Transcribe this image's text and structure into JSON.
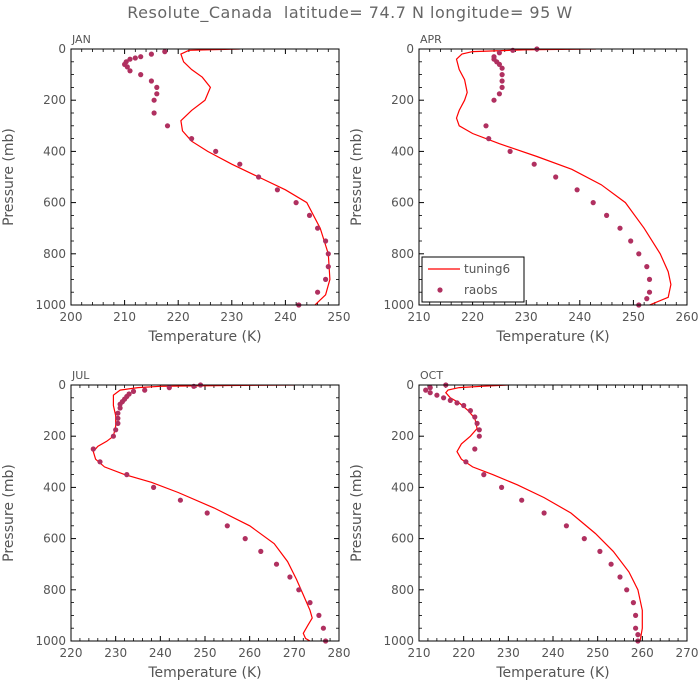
{
  "title": "Resolute_Canada  latitude= 74.7 N longitude= 95 W",
  "colors": {
    "model": "#ff0000",
    "obs": "#b03060",
    "axis": "#000000",
    "text": "#555555"
  },
  "legend": {
    "model_label": "tuning6",
    "obs_label": "raobs",
    "panel": "APR"
  },
  "chart_data": [
    {
      "type": "line",
      "panel": "JAN",
      "xlabel": "Temperature (K)",
      "ylabel": "Pressure (mb)",
      "xlim": [
        200,
        250
      ],
      "ylim": [
        1000,
        0
      ],
      "xticks": [
        200,
        210,
        220,
        230,
        240,
        250
      ],
      "yticks": [
        0,
        200,
        400,
        600,
        800,
        1000
      ],
      "series": [
        {
          "name": "tuning6",
          "kind": "line",
          "x": [
            231.5,
            222,
            220.5,
            221,
            222.5,
            224.5,
            226,
            225,
            222.5,
            220.5,
            220.8,
            222.5,
            225.5,
            230,
            235,
            240,
            244,
            246.5,
            248,
            248.3,
            247.5,
            245.5
          ],
          "y": [
            0,
            5,
            20,
            50,
            80,
            110,
            150,
            200,
            240,
            280,
            320,
            360,
            400,
            450,
            500,
            550,
            600,
            700,
            800,
            900,
            960,
            1000
          ]
        },
        {
          "name": "raobs",
          "kind": "points",
          "x": [
            217.5,
            215,
            213,
            212,
            211,
            210.3,
            210,
            210.5,
            211,
            213,
            215,
            216,
            216,
            215.5,
            215.5,
            218,
            222.5,
            227,
            231.5,
            235,
            238.5,
            242,
            244.5,
            246,
            247.5,
            248,
            248,
            247.5,
            246,
            242.5
          ],
          "y": [
            10,
            20,
            30,
            35,
            40,
            50,
            60,
            70,
            85,
            100,
            125,
            150,
            175,
            200,
            250,
            300,
            350,
            400,
            450,
            500,
            550,
            600,
            650,
            700,
            750,
            800,
            850,
            900,
            950,
            1000
          ]
        }
      ]
    },
    {
      "type": "line",
      "panel": "APR",
      "xlabel": "Temperature (K)",
      "ylabel": "Pressure (mb)",
      "xlim": [
        210,
        260
      ],
      "ylim": [
        1000,
        0
      ],
      "xticks": [
        210,
        220,
        230,
        240,
        250,
        260
      ],
      "yticks": [
        0,
        200,
        400,
        600,
        800,
        1000
      ],
      "series": [
        {
          "name": "tuning6",
          "kind": "line",
          "x": [
            243,
            230,
            220,
            218,
            217,
            217.5,
            218.5,
            219,
            218.5,
            217.5,
            217,
            217.5,
            220,
            225,
            232,
            238.5,
            244,
            248.5,
            252,
            255,
            256.5,
            257,
            256.5,
            253
          ],
          "y": [
            0,
            3,
            10,
            20,
            40,
            80,
            120,
            170,
            200,
            240,
            270,
            300,
            330,
            370,
            420,
            470,
            530,
            600,
            700,
            800,
            870,
            920,
            970,
            1000
          ]
        },
        {
          "name": "raobs",
          "kind": "points",
          "x": [
            232,
            227.5,
            225,
            224,
            224,
            224.5,
            225,
            225.5,
            225.5,
            225.5,
            225.5,
            225,
            224,
            222.5,
            223,
            227,
            231.5,
            235.5,
            239.5,
            242.5,
            245,
            247.5,
            249.5,
            251,
            252.5,
            253,
            253,
            252.5,
            251
          ],
          "y": [
            0,
            5,
            15,
            30,
            40,
            50,
            60,
            75,
            100,
            125,
            150,
            175,
            200,
            300,
            350,
            400,
            450,
            500,
            550,
            600,
            650,
            700,
            750,
            800,
            850,
            900,
            950,
            975,
            1000
          ]
        }
      ]
    },
    {
      "type": "line",
      "panel": "JUL",
      "xlabel": "Temperature (K)",
      "ylabel": "Pressure (mb)",
      "xlim": [
        220,
        280
      ],
      "ylim": [
        1000,
        0
      ],
      "xticks": [
        220,
        230,
        240,
        250,
        260,
        270,
        280
      ],
      "yticks": [
        0,
        200,
        400,
        600,
        800,
        1000
      ],
      "series": [
        {
          "name": "tuning6",
          "kind": "line",
          "x": [
            270,
            255,
            240,
            235,
            231,
            229.5,
            229.5,
            230,
            230,
            229.5,
            228,
            226,
            225,
            225.5,
            227.5,
            232,
            238,
            244,
            252,
            260,
            265.5,
            268.5,
            270.5,
            272,
            273.5,
            274,
            273,
            272,
            272.5,
            273.5
          ],
          "y": [
            0,
            2,
            5,
            10,
            20,
            40,
            80,
            120,
            160,
            200,
            220,
            240,
            260,
            290,
            320,
            350,
            380,
            420,
            480,
            550,
            620,
            690,
            760,
            820,
            880,
            910,
            940,
            970,
            990,
            1000
          ]
        },
        {
          "name": "raobs",
          "kind": "points",
          "x": [
            249,
            247.5,
            242,
            236.5,
            234,
            233,
            232.5,
            232,
            231.5,
            231,
            231,
            230.5,
            230.5,
            230.5,
            230,
            229.5,
            225,
            226.5,
            232.5,
            238.5,
            244.5,
            250.5,
            255,
            259,
            262.5,
            266,
            269,
            271,
            273.5,
            275.5,
            276.5,
            277
          ],
          "y": [
            0,
            5,
            10,
            20,
            25,
            35,
            45,
            55,
            65,
            75,
            90,
            110,
            130,
            150,
            175,
            200,
            250,
            300,
            350,
            400,
            450,
            500,
            550,
            600,
            650,
            700,
            750,
            800,
            850,
            900,
            950,
            1000
          ]
        }
      ]
    },
    {
      "type": "line",
      "panel": "OCT",
      "xlabel": "Temperature (K)",
      "ylabel": "Pressure (mb)",
      "xlim": [
        210,
        270
      ],
      "ylim": [
        1000,
        0
      ],
      "xticks": [
        210,
        220,
        230,
        240,
        250,
        260,
        270
      ],
      "yticks": [
        0,
        200,
        400,
        600,
        800,
        1000
      ],
      "series": [
        {
          "name": "tuning6",
          "kind": "line",
          "x": [
            230,
            224,
            219,
            216.5,
            216,
            217,
            219,
            221,
            222.5,
            223,
            221.5,
            219.5,
            218.5,
            219.5,
            222,
            226.5,
            232,
            238,
            244,
            249.5,
            253.5,
            257,
            259,
            260,
            260,
            259.5
          ],
          "y": [
            0,
            5,
            10,
            20,
            30,
            50,
            70,
            100,
            130,
            170,
            200,
            230,
            260,
            290,
            320,
            350,
            390,
            440,
            500,
            580,
            650,
            730,
            800,
            880,
            950,
            1000
          ]
        },
        {
          "name": "raobs",
          "kind": "points",
          "x": [
            216,
            212.5,
            211.5,
            212.5,
            214,
            215.5,
            217,
            218.5,
            220,
            221.5,
            222.5,
            223,
            223.5,
            223.5,
            222.5,
            220.5,
            224.5,
            228.5,
            233,
            238,
            243,
            247,
            250.5,
            253,
            255,
            256.5,
            258,
            258.5,
            258.5,
            259,
            259
          ],
          "y": [
            0,
            10,
            20,
            30,
            40,
            50,
            60,
            70,
            80,
            100,
            125,
            150,
            175,
            200,
            250,
            300,
            350,
            400,
            450,
            500,
            550,
            600,
            650,
            700,
            750,
            800,
            850,
            900,
            950,
            975,
            1000
          ]
        }
      ]
    }
  ]
}
